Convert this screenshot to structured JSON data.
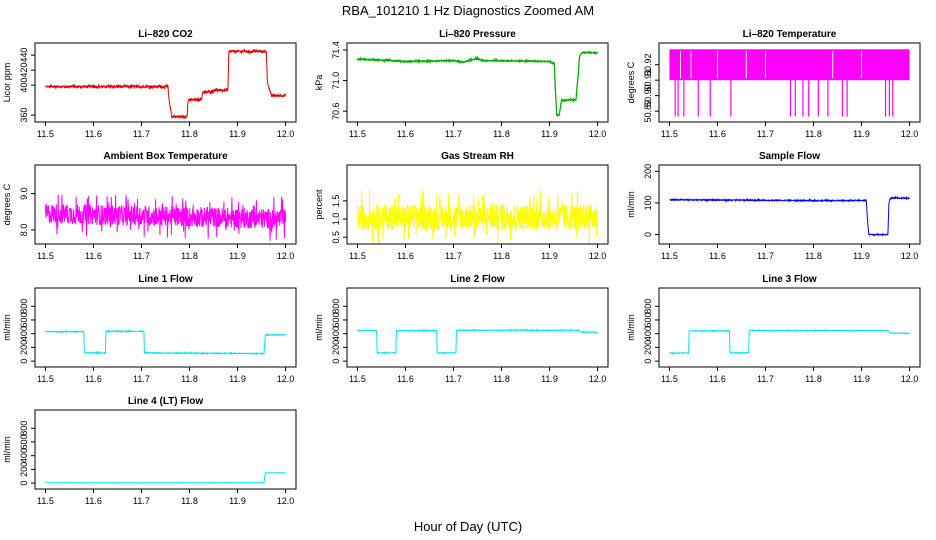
{
  "figure": {
    "main_title": "RBA_101210  1 Hz Diagnostics Zoomed AM",
    "xlabel": "Hour of Day (UTC)"
  },
  "chart_data": [
    {
      "type": "line",
      "title": "Li–820 CO2",
      "ylabel": "Licor ppm",
      "color": "#e00000",
      "xlim": [
        11.5,
        12.0
      ],
      "ylim": [
        355,
        452
      ],
      "xticks": [
        11.5,
        11.6,
        11.7,
        11.8,
        11.9,
        12.0
      ],
      "xtick_labels": [
        "11.5",
        "11.6",
        "11.7",
        "11.8",
        "11.9",
        "12.0"
      ],
      "yticks": [
        360,
        400,
        420,
        440
      ],
      "ytick_labels": [
        "360",
        "400",
        "420",
        "440"
      ],
      "noise": 1.5,
      "x": [
        11.5,
        11.755,
        11.757,
        11.762,
        11.763,
        11.795,
        11.797,
        11.825,
        11.827,
        11.85,
        11.852,
        11.855,
        11.857,
        11.88,
        11.882,
        11.96,
        11.962,
        11.97,
        12.0
      ],
      "y": [
        398,
        398,
        382,
        362,
        358,
        358,
        380,
        381,
        390,
        392,
        394,
        394,
        393,
        393,
        445,
        445,
        405,
        386,
        386
      ]
    },
    {
      "type": "line",
      "title": "Li–820 Pressure",
      "ylabel": "kPa",
      "color": "#00b000",
      "xlim": [
        11.5,
        12.0
      ],
      "ylim": [
        70.5,
        71.45
      ],
      "xticks": [
        11.5,
        11.6,
        11.7,
        11.8,
        11.9,
        12.0
      ],
      "xtick_labels": [
        "11.5",
        "11.6",
        "11.7",
        "11.8",
        "11.9",
        "12.0"
      ],
      "yticks": [
        70.6,
        71.0,
        71.4
      ],
      "ytick_labels": [
        "70.6",
        "71.0",
        "71.4"
      ],
      "noise": 0.006,
      "x": [
        11.5,
        11.58,
        11.6,
        11.7,
        11.72,
        11.75,
        11.76,
        11.8,
        11.9,
        11.91,
        11.912,
        11.915,
        11.92,
        11.925,
        11.955,
        11.96,
        11.962,
        11.965,
        11.97,
        12.0
      ],
      "y": [
        71.28,
        71.26,
        71.25,
        71.26,
        71.24,
        71.29,
        71.26,
        71.26,
        71.25,
        71.22,
        70.9,
        70.55,
        70.55,
        70.74,
        70.75,
        71.1,
        71.3,
        71.35,
        71.37,
        71.36
      ]
    },
    {
      "type": "line",
      "title": "Li–820 Temperature",
      "ylabel": "degrees C",
      "color": "#ff00ff",
      "xlim": [
        11.5,
        12.0
      ],
      "ylim": [
        50.885,
        50.932
      ],
      "xticks": [
        11.5,
        11.6,
        11.7,
        11.8,
        11.9,
        12.0
      ],
      "xtick_labels": [
        "11.5",
        "11.6",
        "11.7",
        "11.8",
        "11.9",
        "12.0"
      ],
      "yticks": [
        50.89,
        50.9,
        50.91,
        50.92
      ],
      "ytick_labels": [
        "50.89",
        "50.90",
        "50.91",
        "50.92"
      ],
      "noise": 0,
      "x": [
        11.5,
        12.0
      ],
      "y": [
        50.918,
        50.918
      ],
      "band": [
        50.91,
        50.93
      ],
      "spikes": [
        11.512,
        11.518,
        11.53,
        11.56,
        11.585,
        11.628,
        11.752,
        11.762,
        11.778,
        11.79,
        11.81,
        11.83,
        11.86,
        11.87,
        11.95,
        11.958,
        11.965
      ]
    },
    {
      "type": "line",
      "title": "Ambient Box Temperature",
      "ylabel": "degrees C",
      "color": "#ff00ff",
      "xlim": [
        11.5,
        12.0
      ],
      "ylim": [
        7.7,
        9.7
      ],
      "xticks": [
        11.5,
        11.6,
        11.7,
        11.8,
        11.9,
        12.0
      ],
      "xtick_labels": [
        "11.5",
        "11.6",
        "11.7",
        "11.8",
        "11.9",
        "12.0"
      ],
      "yticks": [
        8.0,
        9.0
      ],
      "ytick_labels": [
        "8.0",
        "9.0"
      ],
      "noise": 0.28,
      "x": [
        11.5,
        12.0
      ],
      "y": [
        8.45,
        8.3
      ]
    },
    {
      "type": "line",
      "title": "Gas Stream RH",
      "ylabel": "percent",
      "color": "#ffff00",
      "xlim": [
        11.5,
        12.0
      ],
      "ylim": [
        0.4,
        2.4
      ],
      "xticks": [
        11.5,
        11.6,
        11.7,
        11.8,
        11.9,
        12.0
      ],
      "xtick_labels": [
        "11.5",
        "11.6",
        "11.7",
        "11.8",
        "11.9",
        "12.0"
      ],
      "yticks": [
        0.5,
        1.0,
        1.5
      ],
      "ytick_labels": [
        "0.5",
        "1.0",
        "1.5"
      ],
      "noise": 0.35,
      "x": [
        11.5,
        12.0
      ],
      "y": [
        1.05,
        1.05
      ]
    },
    {
      "type": "line",
      "title": "Sample Flow",
      "ylabel": "ml/min",
      "color": "#0000ff",
      "xlim": [
        11.5,
        12.0
      ],
      "ylim": [
        -20,
        210
      ],
      "xticks": [
        11.5,
        11.6,
        11.7,
        11.8,
        11.9,
        12.0
      ],
      "xtick_labels": [
        "11.5",
        "11.6",
        "11.7",
        "11.8",
        "11.9",
        "12.0"
      ],
      "yticks": [
        0,
        100,
        200
      ],
      "ytick_labels": [
        "0",
        "100",
        "200"
      ],
      "noise": 1.5,
      "x": [
        11.5,
        11.75,
        11.8,
        11.91,
        11.912,
        11.915,
        11.955,
        11.957,
        11.96,
        12.0
      ],
      "y": [
        110,
        108,
        107,
        108,
        55,
        0,
        0,
        100,
        115,
        115
      ]
    },
    {
      "type": "line",
      "title": "Line 1 Flow",
      "ylabel": "ml/min",
      "color": "#00e5ee",
      "xlim": [
        11.5,
        12.0
      ],
      "ylim": [
        -40,
        1020
      ],
      "xticks": [
        11.5,
        11.6,
        11.7,
        11.8,
        11.9,
        12.0
      ],
      "xtick_labels": [
        "11.5",
        "11.6",
        "11.7",
        "11.8",
        "11.9",
        "12.0"
      ],
      "yticks": [
        0,
        200,
        400,
        600,
        800
      ],
      "ytick_labels": [
        "0",
        "200",
        "400",
        "600",
        "800"
      ],
      "noise": 5,
      "x": [
        11.5,
        11.58,
        11.581,
        11.625,
        11.626,
        11.705,
        11.706,
        11.955,
        11.958,
        12.0
      ],
      "y": [
        430,
        430,
        120,
        120,
        435,
        435,
        120,
        110,
        380,
        385
      ]
    },
    {
      "type": "line",
      "title": "Line 2 Flow",
      "ylabel": "ml/min",
      "color": "#00e5ee",
      "xlim": [
        11.5,
        12.0
      ],
      "ylim": [
        -40,
        1020
      ],
      "xticks": [
        11.5,
        11.6,
        11.7,
        11.8,
        11.9,
        12.0
      ],
      "xtick_labels": [
        "11.5",
        "11.6",
        "11.7",
        "11.8",
        "11.9",
        "12.0"
      ],
      "yticks": [
        0,
        200,
        400,
        600,
        800
      ],
      "ytick_labels": [
        "0",
        "200",
        "400",
        "600",
        "800"
      ],
      "noise": 4,
      "x": [
        11.5,
        11.54,
        11.541,
        11.58,
        11.581,
        11.665,
        11.666,
        11.705,
        11.706,
        11.96,
        11.965,
        12.0
      ],
      "y": [
        445,
        445,
        120,
        120,
        445,
        445,
        120,
        120,
        450,
        450,
        425,
        420
      ]
    },
    {
      "type": "line",
      "title": "Line 3 Flow",
      "ylabel": "ml/min",
      "color": "#00e5ee",
      "xlim": [
        11.5,
        12.0
      ],
      "ylim": [
        -40,
        1020
      ],
      "xticks": [
        11.5,
        11.6,
        11.7,
        11.8,
        11.9,
        12.0
      ],
      "xtick_labels": [
        "11.5",
        "11.6",
        "11.7",
        "11.8",
        "11.9",
        "12.0"
      ],
      "yticks": [
        0,
        200,
        400,
        600,
        800
      ],
      "ytick_labels": [
        "0",
        "200",
        "400",
        "600",
        "800"
      ],
      "noise": 4,
      "x": [
        11.5,
        11.54,
        11.541,
        11.625,
        11.626,
        11.665,
        11.666,
        11.955,
        11.96,
        12.0
      ],
      "y": [
        115,
        120,
        440,
        440,
        120,
        120,
        445,
        445,
        410,
        405
      ]
    },
    {
      "type": "line",
      "title": "Line 4 (LT) Flow",
      "ylabel": "ml/min",
      "color": "#00e5ee",
      "xlim": [
        11.5,
        12.0
      ],
      "ylim": [
        -40,
        1020
      ],
      "xticks": [
        11.5,
        11.6,
        11.7,
        11.8,
        11.9,
        12.0
      ],
      "xtick_labels": [
        "11.5",
        "11.6",
        "11.7",
        "11.8",
        "11.9",
        "12.0"
      ],
      "yticks": [
        0,
        200,
        400,
        600,
        800
      ],
      "ytick_labels": [
        "0",
        "200",
        "400",
        "600",
        "800"
      ],
      "noise": 1,
      "x": [
        11.5,
        11.955,
        11.958,
        12.0
      ],
      "y": [
        5,
        5,
        150,
        150
      ]
    }
  ]
}
